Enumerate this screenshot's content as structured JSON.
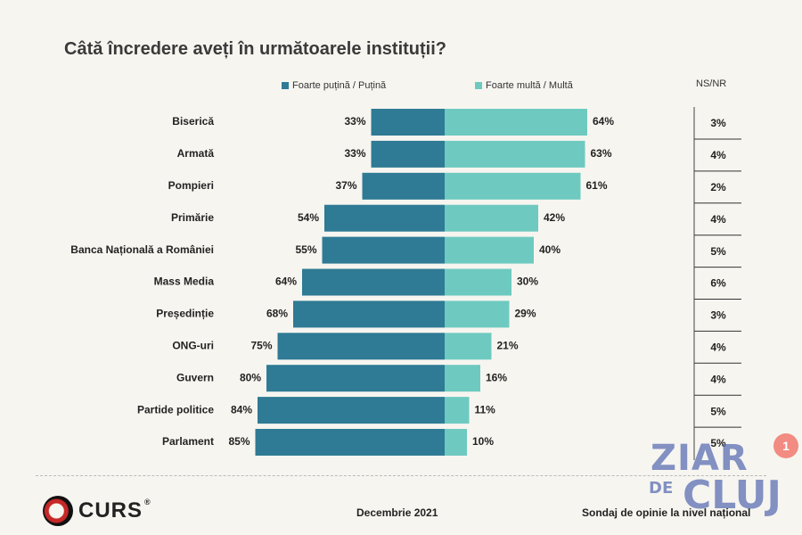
{
  "title": "Câtă încredere aveți în următoarele instituții?",
  "legend": {
    "low_label": "Foarte puțină / Puțină",
    "high_label": "Foarte multă / Multă"
  },
  "nsnr_header": "NS/NR",
  "colors": {
    "low": "#2f7a95",
    "high": "#6ecac0",
    "text": "#222222"
  },
  "chart_data": {
    "type": "bar",
    "orientation": "horizontal-diverging",
    "title": "Câtă încredere aveți în următoarele instituții?",
    "categories": [
      "Biserică",
      "Armată",
      "Pompieri",
      "Primărie",
      "Banca Națională a României",
      "Mass Media",
      "Președinție",
      "ONG-uri",
      "Guvern",
      "Partide politice",
      "Parlament"
    ],
    "series": [
      {
        "name": "Foarte puțină / Puțină",
        "values": [
          33,
          33,
          37,
          54,
          55,
          64,
          68,
          75,
          80,
          84,
          85
        ],
        "labels": [
          "33%",
          "33%",
          "37%",
          "54%",
          "55%",
          "64%",
          "68%",
          "75%",
          "80%",
          "84%",
          "85%"
        ]
      },
      {
        "name": "Foarte multă / Multă",
        "values": [
          64,
          63,
          61,
          42,
          40,
          30,
          29,
          21,
          16,
          11,
          10
        ],
        "labels": [
          "64%",
          "63%",
          "61%",
          "42%",
          "40%",
          "30%",
          "29%",
          "21%",
          "16%",
          "11%",
          "10%"
        ]
      },
      {
        "name": "NS/NR",
        "values": [
          3,
          4,
          2,
          4,
          5,
          6,
          3,
          4,
          4,
          5,
          5
        ],
        "labels": [
          "3%",
          "4%",
          "2%",
          "4%",
          "5%",
          "6%",
          "3%",
          "4%",
          "4%",
          "5%",
          "5%"
        ]
      }
    ]
  },
  "footer": {
    "logo_text": "CURS",
    "logo_mark": "®",
    "date": "Decembrie 2021",
    "note": "Sondaj de opinie la nivel național"
  },
  "watermark": {
    "line1": "ZIAR",
    "line2": "DE",
    "line3": "CLUJ"
  },
  "badge": "1"
}
